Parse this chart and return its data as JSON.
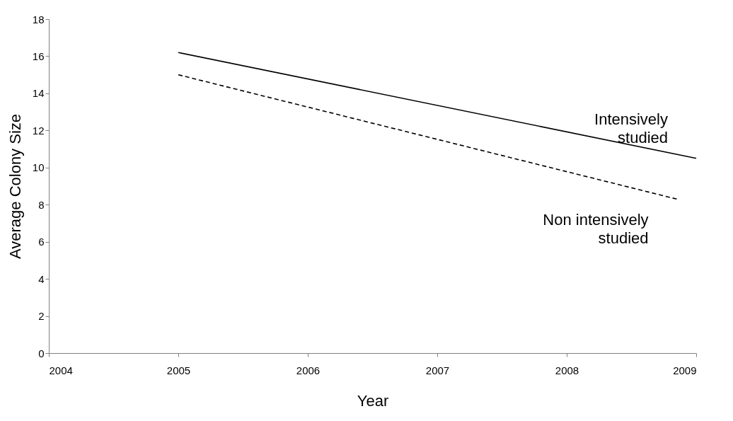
{
  "chart_data": {
    "type": "line",
    "xlabel": "Year",
    "ylabel": "Average Colony Size",
    "xlim": [
      2004,
      2009
    ],
    "xticks": [
      2004,
      2005,
      2006,
      2007,
      2008,
      2009
    ],
    "ylim": [
      0,
      18
    ],
    "yticks": [
      0,
      2,
      4,
      6,
      8,
      10,
      12,
      14,
      16,
      18
    ],
    "grid": false,
    "legend": false,
    "marker": "none",
    "series": [
      {
        "name": "Intensively studied",
        "color": "#000000",
        "line_style": "solid",
        "x": [
          2005,
          2009
        ],
        "values": [
          16.2,
          10.5
        ]
      },
      {
        "name": "Non intensively studied",
        "color": "#000000",
        "line_style": "dashed",
        "x": [
          2005,
          2008.85
        ],
        "values": [
          15.0,
          8.3
        ]
      }
    ]
  }
}
